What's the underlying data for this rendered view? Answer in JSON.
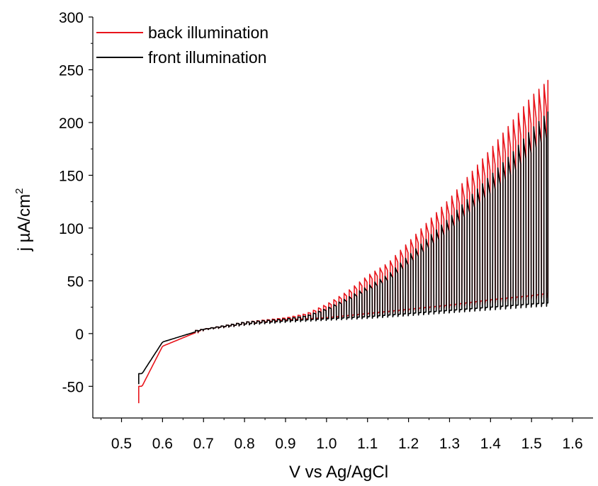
{
  "chart_data": {
    "type": "line",
    "title": "",
    "xlabel": "V vs Ag/AgCl",
    "ylabel_main": "j µA/cm",
    "ylabel_sup": "2",
    "xlim": [
      0.43,
      1.65
    ],
    "ylim": [
      -80,
      300
    ],
    "xticks": [
      "0.5",
      "0.6",
      "0.7",
      "0.8",
      "0.9",
      "1.0",
      "1.1",
      "1.2",
      "1.3",
      "1.4",
      "1.5",
      "1.6"
    ],
    "yticks": [
      "-50",
      "0",
      "50",
      "100",
      "150",
      "200",
      "250",
      "300"
    ],
    "grid": false,
    "legend_position": "top-left",
    "chopped_light": {
      "x_start": 0.542,
      "x_end": 1.54,
      "first_pulse_x": 0.68,
      "pulse_period_v": 0.0125
    },
    "series": [
      {
        "name": "back illumination",
        "color": "#e8141b",
        "start_value": -66,
        "dark_baseline": [
          [
            0.55,
            -50
          ],
          [
            0.6,
            -12
          ],
          [
            0.7,
            4
          ],
          [
            0.8,
            9
          ],
          [
            0.9,
            13
          ],
          [
            1.0,
            15
          ],
          [
            1.1,
            19
          ],
          [
            1.2,
            23
          ],
          [
            1.3,
            27
          ],
          [
            1.4,
            32
          ],
          [
            1.5,
            36
          ],
          [
            1.54,
            38
          ]
        ],
        "light_peaks": [
          [
            0.68,
            3
          ],
          [
            0.8,
            11
          ],
          [
            0.9,
            15
          ],
          [
            0.95,
            19
          ],
          [
            1.0,
            28
          ],
          [
            1.05,
            40
          ],
          [
            1.1,
            55
          ],
          [
            1.15,
            67
          ],
          [
            1.2,
            87
          ],
          [
            1.3,
            128
          ],
          [
            1.4,
            175
          ],
          [
            1.45,
            200
          ],
          [
            1.5,
            225
          ],
          [
            1.54,
            240
          ]
        ]
      },
      {
        "name": "front illumination",
        "color": "#000000",
        "start_value": -48,
        "dark_baseline": [
          [
            0.55,
            -38
          ],
          [
            0.6,
            -8
          ],
          [
            0.7,
            4
          ],
          [
            0.8,
            9
          ],
          [
            0.9,
            12
          ],
          [
            1.0,
            14
          ],
          [
            1.1,
            16
          ],
          [
            1.2,
            19
          ],
          [
            1.3,
            22
          ],
          [
            1.4,
            25
          ],
          [
            1.5,
            28
          ],
          [
            1.54,
            29
          ]
        ],
        "light_peaks": [
          [
            0.68,
            3
          ],
          [
            0.8,
            11
          ],
          [
            0.9,
            14
          ],
          [
            0.95,
            17
          ],
          [
            1.0,
            24
          ],
          [
            1.05,
            34
          ],
          [
            1.1,
            45
          ],
          [
            1.15,
            56
          ],
          [
            1.2,
            74
          ],
          [
            1.3,
            110
          ],
          [
            1.4,
            150
          ],
          [
            1.45,
            170
          ],
          [
            1.5,
            194
          ],
          [
            1.54,
            210
          ]
        ]
      }
    ]
  }
}
